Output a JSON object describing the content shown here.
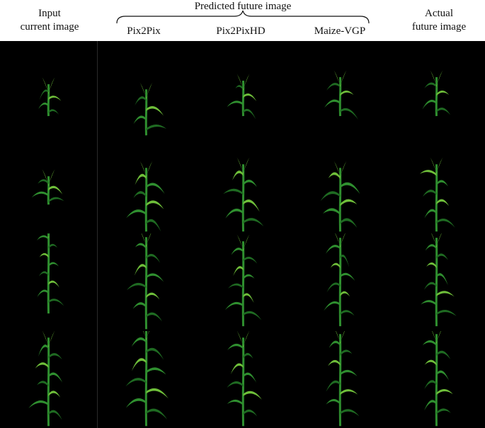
{
  "headers": {
    "input": "Input\ncurrent image",
    "predicted_group": "Predicted future image",
    "pix2pix": "Pix2Pix",
    "pix2pixhd": "Pix2PixHD",
    "maize_vgp": "Maize-VGP",
    "actual": "Actual\nfuture image"
  },
  "colors": {
    "background": "#000000",
    "leaf_dark": "#1f6b22",
    "leaf_mid": "#2f8f2f",
    "leaf_light": "#6fbf3a"
  }
}
